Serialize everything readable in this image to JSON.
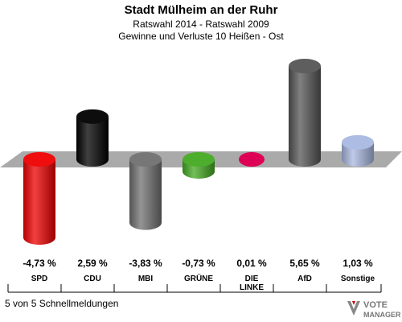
{
  "header": {
    "title": "Stadt Mülheim an der Ruhr",
    "subtitle": "Ratswahl 2014 - Ratswahl 2009",
    "subtitle2": "Gewinne und Verluste 10 Heißen - Ost"
  },
  "footer": {
    "text": "5 von 5 Schnellmeldungen"
  },
  "logo": {
    "line1": "VOTE",
    "line2": "MANAGER"
  },
  "chart_data": {
    "type": "bar",
    "title": "Stadt Mülheim an der Ruhr",
    "categories": [
      "SPD",
      "CDU",
      "MBI",
      "GRÜNE",
      "DIE LINKE",
      "AfD",
      "Sonstige"
    ],
    "category_lines": [
      [
        "SPD"
      ],
      [
        "CDU"
      ],
      [
        "MBI"
      ],
      [
        "GRÜNE"
      ],
      [
        "DIE",
        "LINKE"
      ],
      [
        "AfD"
      ],
      [
        "Sonstige"
      ]
    ],
    "values": [
      -4.73,
      2.59,
      -3.83,
      -0.73,
      0.01,
      5.65,
      1.03
    ],
    "value_labels": [
      "-4,73 %",
      "2,59 %",
      "-3,83 %",
      "-0,73 %",
      "0,01 %",
      "5,65 %",
      "1,03 %"
    ],
    "colors": [
      "#ee0000",
      "#000000",
      "#707070",
      "#44aa22",
      "#dd0055",
      "#555555",
      "#a8b8e0"
    ],
    "xlabel": "",
    "ylabel": "",
    "grid": false
  }
}
